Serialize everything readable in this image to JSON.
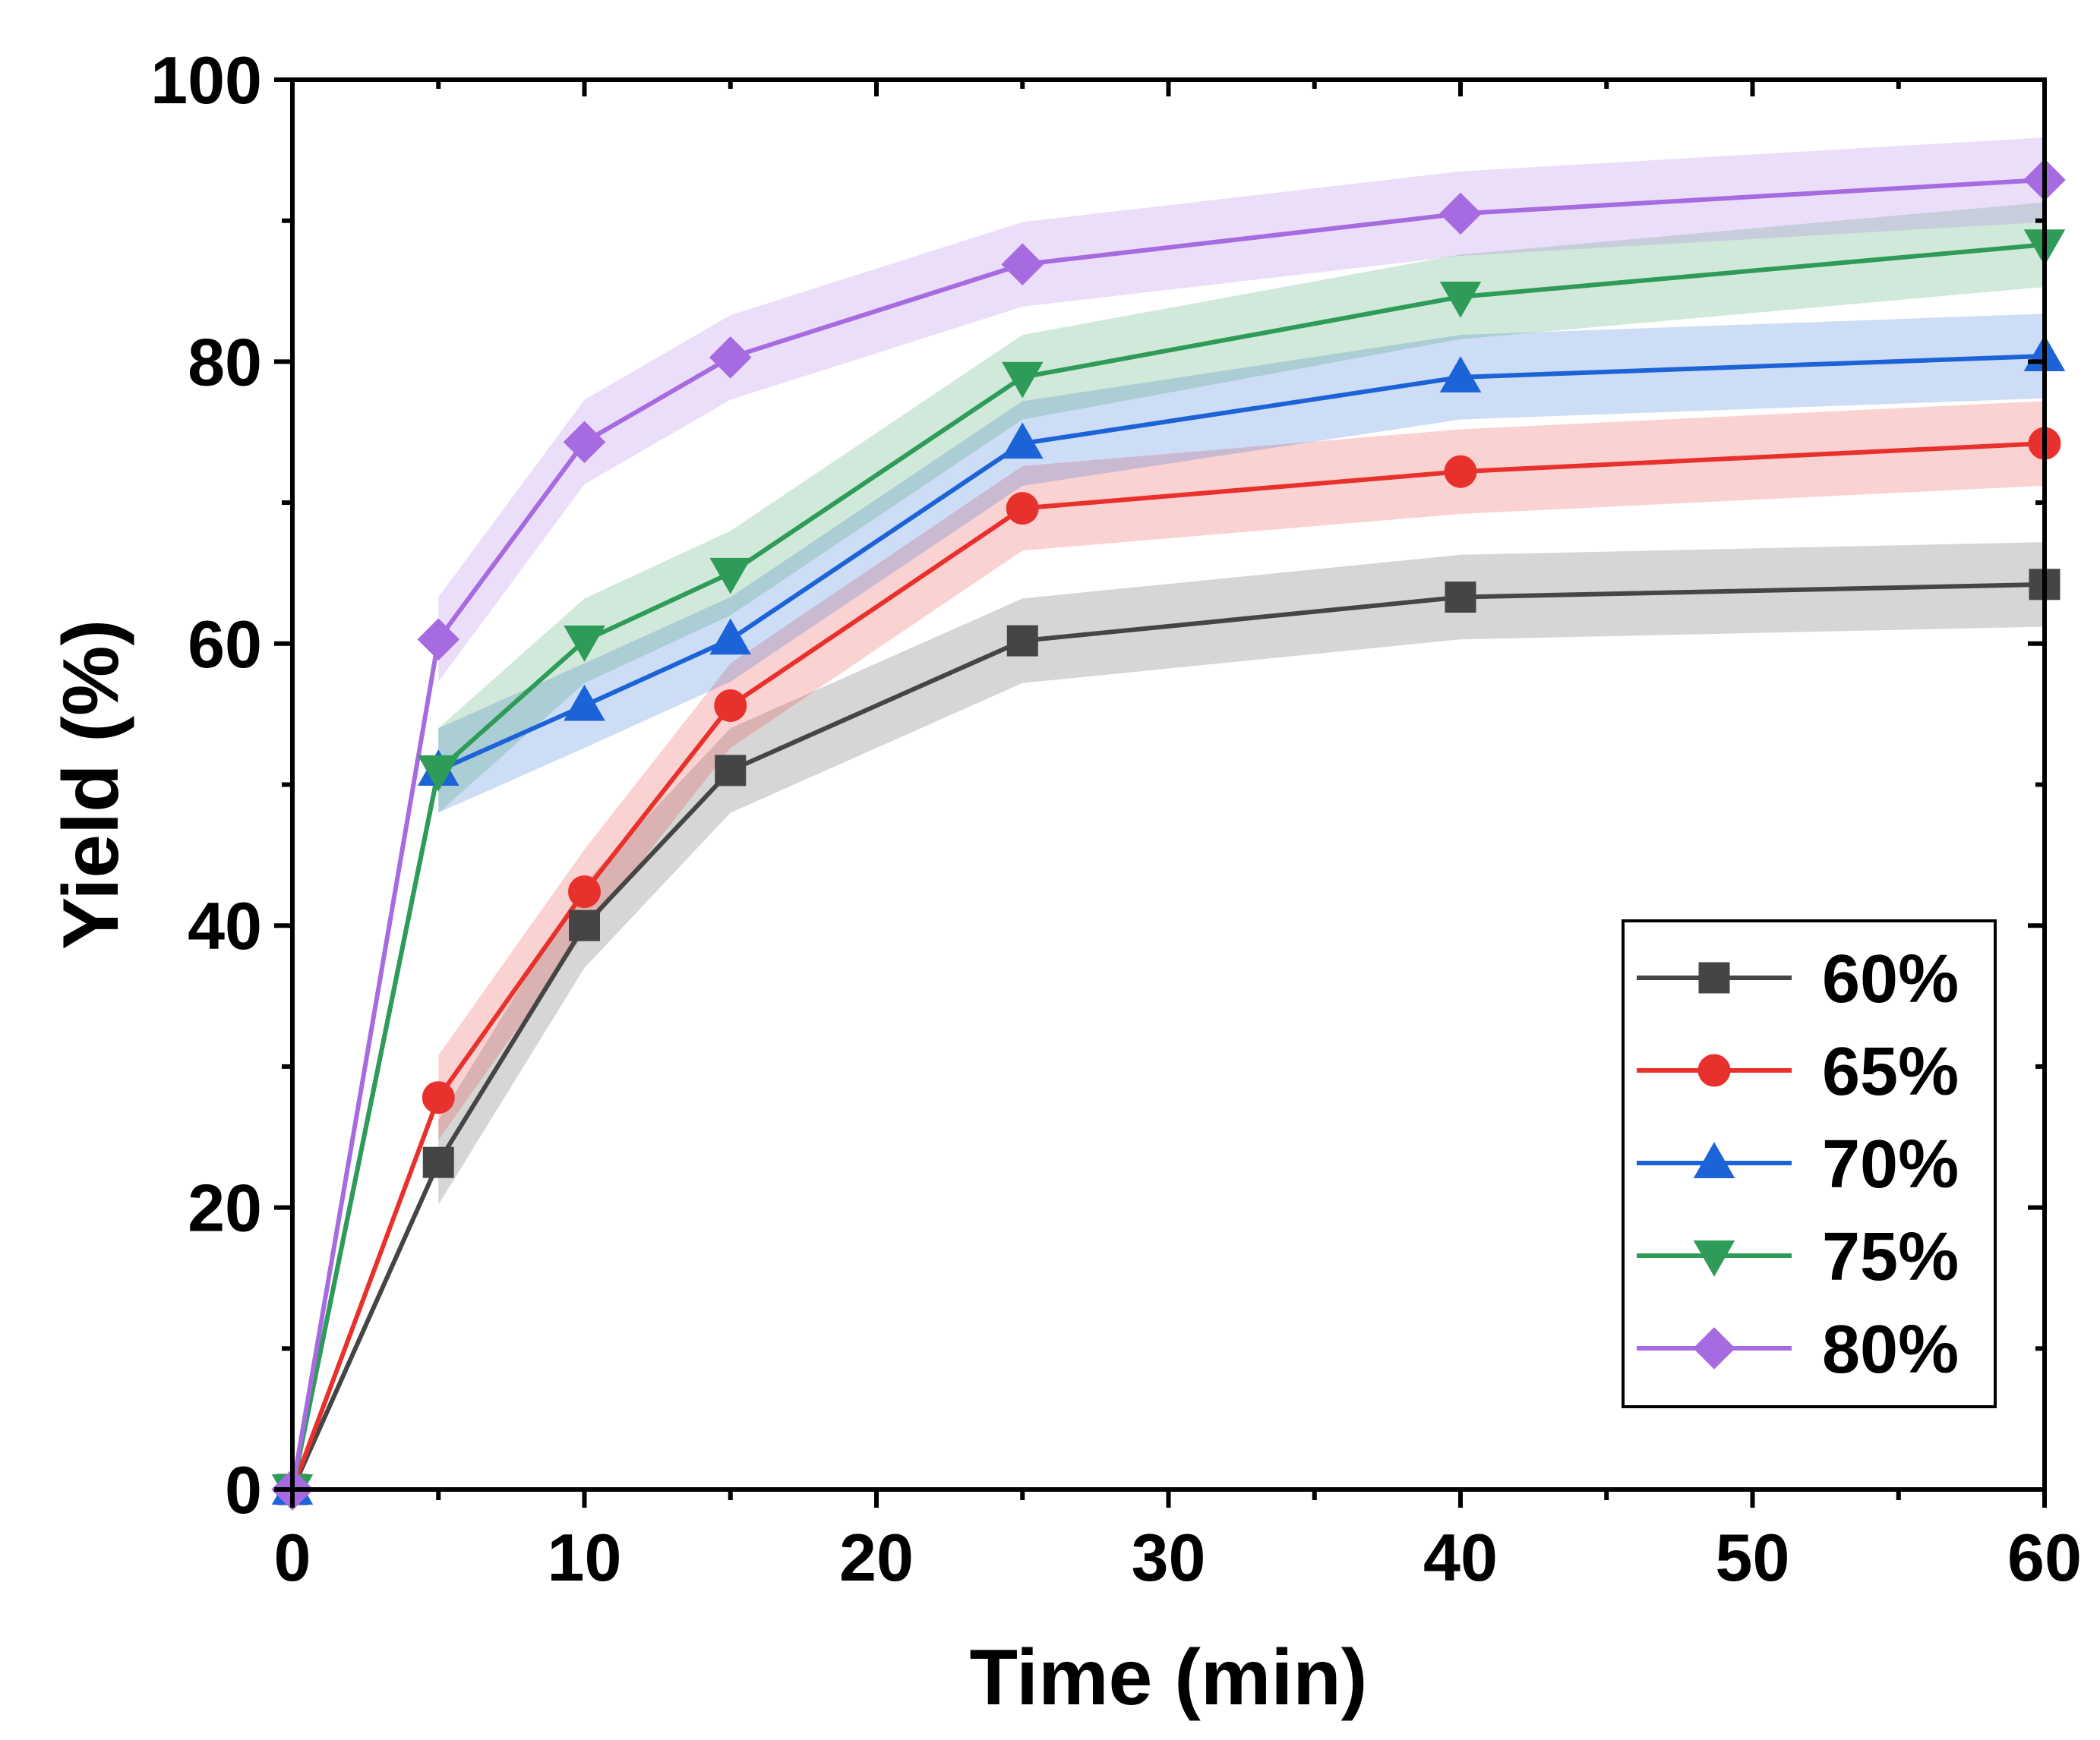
{
  "chart_data": {
    "type": "line",
    "xlabel": "Time (min)",
    "ylabel": "Yield (%)",
    "xlim": [
      0,
      60
    ],
    "ylim": [
      0,
      100
    ],
    "xticks": [
      0,
      10,
      20,
      30,
      40,
      50,
      60
    ],
    "yticks": [
      0,
      20,
      40,
      60,
      80,
      100
    ],
    "grid": false,
    "legend_position": "bottom-right",
    "band_halfwidth": 3,
    "x": [
      0,
      5,
      10,
      15,
      25,
      40,
      60
    ],
    "series": [
      {
        "name": "60%",
        "color": "#454545",
        "marker": "square",
        "values": [
          0,
          23.2,
          40,
          51,
          60.2,
          63.3,
          64.2
        ]
      },
      {
        "name": "65%",
        "color": "#e8312d",
        "marker": "circle",
        "values": [
          0,
          27.8,
          42.4,
          55.6,
          69.6,
          72.2,
          74.2
        ]
      },
      {
        "name": "70%",
        "color": "#1d63d8",
        "marker": "triangle-up",
        "values": [
          0,
          51,
          55.6,
          60.3,
          74.2,
          78.9,
          80.4
        ]
      },
      {
        "name": "75%",
        "color": "#2e9c58",
        "marker": "triangle-down",
        "values": [
          0,
          51,
          60.2,
          65,
          78.9,
          84.6,
          88.3
        ]
      },
      {
        "name": "80%",
        "color": "#a66be0",
        "marker": "diamond",
        "values": [
          0,
          60.3,
          74.3,
          80.3,
          86.9,
          90.5,
          92.9
        ]
      }
    ]
  }
}
